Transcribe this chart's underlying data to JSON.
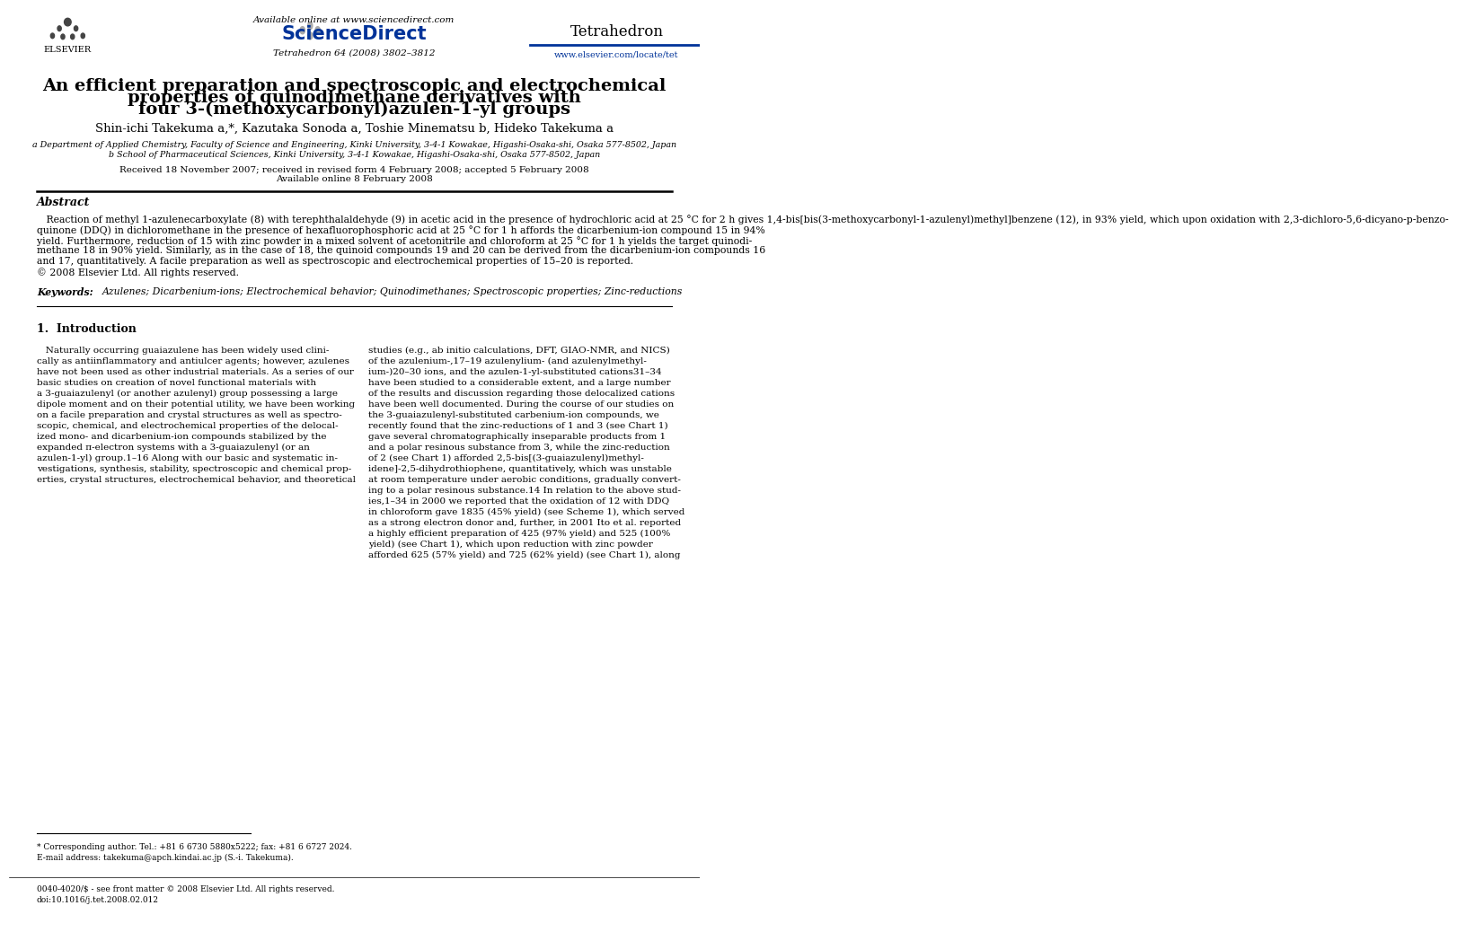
{
  "page_width": 9.92,
  "page_height": 13.23,
  "bg_color": "#ffffff",
  "header_available_online": "Available online at www.sciencedirect.com",
  "header_sciencedirect": "ScienceDirect",
  "header_journal_name": "Tetrahedron",
  "header_journal_info": "Tetrahedron 64 (2008) 3802–3812",
  "header_url": "www.elsevier.com/locate/tet",
  "header_elsevier_label": "ELSEVIER",
  "title_line1": "An efficient preparation and spectroscopic and electrochemical",
  "title_line2": "properties of quinodimethane derivatives with",
  "title_line3": "four 3-(methoxycarbonyl)azulen-1-yl groups",
  "authors": "Shin-ichi Takekuma a,*, Kazutaka Sonoda a, Toshie Minematsu b, Hideko Takekuma a",
  "affiliation_a": "a Department of Applied Chemistry, Faculty of Science and Engineering, Kinki University, 3-4-1 Kowakae, Higashi-Osaka-shi, Osaka 577-8502, Japan",
  "affiliation_b": "b School of Pharmaceutical Sciences, Kinki University, 3-4-1 Kowakae, Higashi-Osaka-shi, Osaka 577-8502, Japan",
  "date_line1": "Received 18 November 2007; received in revised form 4 February 2008; accepted 5 February 2008",
  "date_line2": "Available online 8 February 2008",
  "abstract_title": "Abstract",
  "abstract_text_lines": [
    "   Reaction of methyl 1-azulenecarboxylate (8) with terephthalaldehyde (9) in acetic acid in the presence of hydrochloric acid at 25 °C for 2 h gives 1,4-bis[bis(3-methoxycarbonyl-1-azulenyl)methyl]benzene (12), in 93% yield, which upon oxidation with 2,3-dichloro-5,6-dicyano-p-benzo-",
    "quinone (DDQ) in dichloromethane in the presence of hexafluorophosphoric acid at 25 °C for 1 h affords the dicarbenium-ion compound 15 in 94%",
    "yield. Furthermore, reduction of 15 with zinc powder in a mixed solvent of acetonitrile and chloroform at 25 °C for 1 h yields the target quinodi-",
    "methane 18 in 90% yield. Similarly, as in the case of 18, the quinoid compounds 19 and 20 can be derived from the dicarbenium-ion compounds 16",
    "and 17, quantitatively. A facile preparation as well as spectroscopic and electrochemical properties of 15–20 is reported.",
    "© 2008 Elsevier Ltd. All rights reserved."
  ],
  "keywords_label": "Keywords:",
  "keywords": "Azulenes; Dicarbenium-ions; Electrochemical behavior; Quinodimethanes; Spectroscopic properties; Zinc-reductions",
  "section1_title": "1.  Introduction",
  "col1_lines": [
    "   Naturally occurring guaiazulene has been widely used clini-",
    "cally as antiinflammatory and antiulcer agents; however, azulenes",
    "have not been used as other industrial materials. As a series of our",
    "basic studies on creation of novel functional materials with",
    "a 3-guaiazulenyl (or another azulenyl) group possessing a large",
    "dipole moment and on their potential utility, we have been working",
    "on a facile preparation and crystal structures as well as spectro-",
    "scopic, chemical, and electrochemical properties of the delocal-",
    "ized mono- and dicarbenium-ion compounds stabilized by the",
    "expanded π-electron systems with a 3-guaiazulenyl (or an",
    "azulen-1-yl) group.1–16 Along with our basic and systematic in-",
    "vestigations, synthesis, stability, spectroscopic and chemical prop-",
    "erties, crystal structures, electrochemical behavior, and theoretical"
  ],
  "col2_lines": [
    "studies (e.g., ab initio calculations, DFT, GIAO-NMR, and NICS)",
    "of the azulenium-,17–19 azulenylium- (and azulenylmethyl-",
    "ium-)20–30 ions, and the azulen-1-yl-substituted cations31–34",
    "have been studied to a considerable extent, and a large number",
    "of the results and discussion regarding those delocalized cations",
    "have been well documented. During the course of our studies on",
    "the 3-guaiazulenyl-substituted carbenium-ion compounds, we",
    "recently found that the zinc-reductions of 1 and 3 (see Chart 1)",
    "gave several chromatographically inseparable products from 1",
    "and a polar resinous substance from 3, while the zinc-reduction",
    "of 2 (see Chart 1) afforded 2,5-bis[(3-guaiazulenyl)methyl-",
    "idene]-2,5-dihydrothiophene, quantitatively, which was unstable",
    "at room temperature under aerobic conditions, gradually convert-",
    "ing to a polar resinous substance.14 In relation to the above stud-",
    "ies,1–34 in 2000 we reported that the oxidation of 12 with DDQ",
    "in chloroform gave 1835 (45% yield) (see Scheme 1), which served",
    "as a strong electron donor and, further, in 2001 Ito et al. reported",
    "a highly efficient preparation of 425 (97% yield) and 525 (100%",
    "yield) (see Chart 1), which upon reduction with zinc powder",
    "afforded 625 (57% yield) and 725 (62% yield) (see Chart 1), along"
  ],
  "footnote_star": "* Corresponding author. Tel.: +81 6 6730 5880x5222; fax: +81 6 6727 2024.",
  "footnote_email_label": "E-mail address:",
  "footnote_email": "takekuma@apch.kindai.ac.jp (S.-i. Takekuma).",
  "footer_text": "0040-4020/$ - see front matter © 2008 Elsevier Ltd. All rights reserved.\ndoi:10.1016/j.tet.2008.02.012"
}
